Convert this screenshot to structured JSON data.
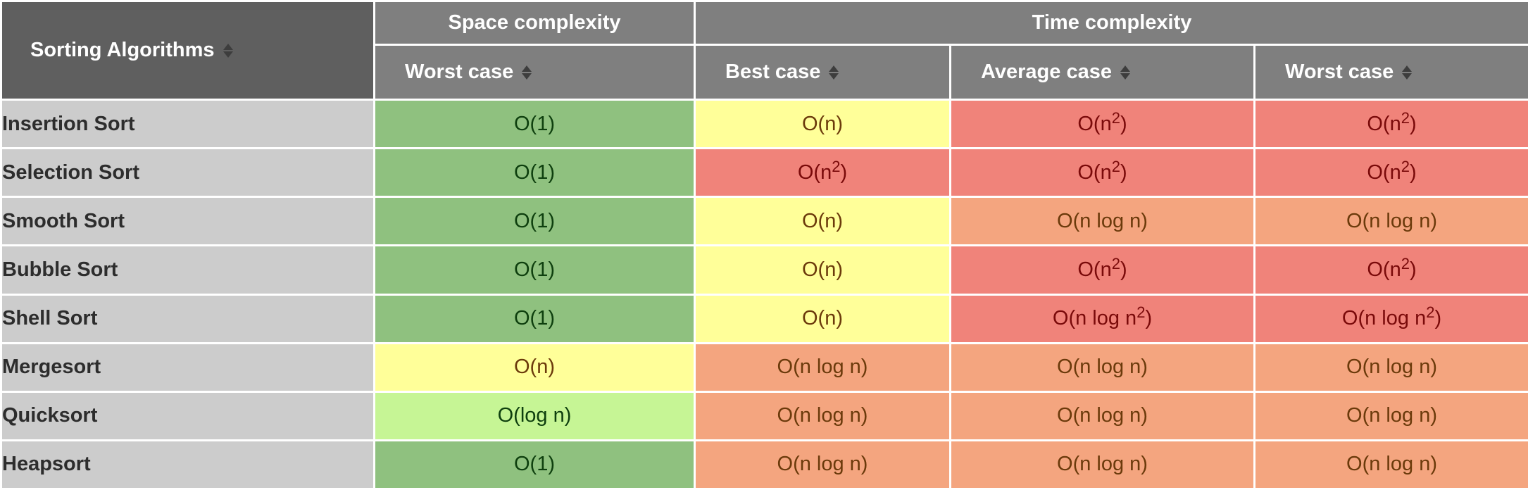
{
  "header": {
    "corner_label": "Sorting Algorithms",
    "groups": [
      "Space complexity",
      "Time complexity"
    ],
    "columns": [
      "Worst case",
      "Best case",
      "Average case",
      "Worst case"
    ]
  },
  "cell_colors": {
    "good": "#8fc17f",
    "great": "#c6f595",
    "fair": "#ffff99",
    "meh": "#f4a57f",
    "bad": "#f0837a"
  },
  "rows": [
    {
      "name": "Insertion Sort",
      "cells": [
        {
          "base": "O(1)",
          "sup": "",
          "tail": "",
          "rating": "good"
        },
        {
          "base": "O(n)",
          "sup": "",
          "tail": "",
          "rating": "fair"
        },
        {
          "base": "O(n",
          "sup": "2",
          "tail": ")",
          "rating": "bad"
        },
        {
          "base": "O(n",
          "sup": "2",
          "tail": ")",
          "rating": "bad"
        }
      ]
    },
    {
      "name": "Selection Sort",
      "cells": [
        {
          "base": "O(1)",
          "sup": "",
          "tail": "",
          "rating": "good"
        },
        {
          "base": "O(n",
          "sup": "2",
          "tail": ")",
          "rating": "bad"
        },
        {
          "base": "O(n",
          "sup": "2",
          "tail": ")",
          "rating": "bad"
        },
        {
          "base": "O(n",
          "sup": "2",
          "tail": ")",
          "rating": "bad"
        }
      ]
    },
    {
      "name": "Smooth Sort",
      "cells": [
        {
          "base": "O(1)",
          "sup": "",
          "tail": "",
          "rating": "good"
        },
        {
          "base": "O(n)",
          "sup": "",
          "tail": "",
          "rating": "fair"
        },
        {
          "base": "O(n log n)",
          "sup": "",
          "tail": "",
          "rating": "meh"
        },
        {
          "base": "O(n log n)",
          "sup": "",
          "tail": "",
          "rating": "meh"
        }
      ]
    },
    {
      "name": "Bubble Sort",
      "cells": [
        {
          "base": "O(1)",
          "sup": "",
          "tail": "",
          "rating": "good"
        },
        {
          "base": "O(n)",
          "sup": "",
          "tail": "",
          "rating": "fair"
        },
        {
          "base": "O(n",
          "sup": "2",
          "tail": ")",
          "rating": "bad"
        },
        {
          "base": "O(n",
          "sup": "2",
          "tail": ")",
          "rating": "bad"
        }
      ]
    },
    {
      "name": "Shell Sort",
      "cells": [
        {
          "base": "O(1)",
          "sup": "",
          "tail": "",
          "rating": "good"
        },
        {
          "base": "O(n)",
          "sup": "",
          "tail": "",
          "rating": "fair"
        },
        {
          "base": "O(n log n",
          "sup": "2",
          "tail": ")",
          "rating": "bad"
        },
        {
          "base": "O(n log n",
          "sup": "2",
          "tail": ")",
          "rating": "bad"
        }
      ]
    },
    {
      "name": "Mergesort",
      "cells": [
        {
          "base": "O(n)",
          "sup": "",
          "tail": "",
          "rating": "fair"
        },
        {
          "base": "O(n log n)",
          "sup": "",
          "tail": "",
          "rating": "meh"
        },
        {
          "base": "O(n log n)",
          "sup": "",
          "tail": "",
          "rating": "meh"
        },
        {
          "base": "O(n log n)",
          "sup": "",
          "tail": "",
          "rating": "meh"
        }
      ]
    },
    {
      "name": "Quicksort",
      "cells": [
        {
          "base": "O(log n)",
          "sup": "",
          "tail": "",
          "rating": "great"
        },
        {
          "base": "O(n log n)",
          "sup": "",
          "tail": "",
          "rating": "meh"
        },
        {
          "base": "O(n log n)",
          "sup": "",
          "tail": "",
          "rating": "meh"
        },
        {
          "base": "O(n log n)",
          "sup": "",
          "tail": "",
          "rating": "meh"
        }
      ]
    },
    {
      "name": "Heapsort",
      "cells": [
        {
          "base": "O(1)",
          "sup": "",
          "tail": "",
          "rating": "good"
        },
        {
          "base": "O(n log n)",
          "sup": "",
          "tail": "",
          "rating": "meh"
        },
        {
          "base": "O(n log n)",
          "sup": "",
          "tail": "",
          "rating": "meh"
        },
        {
          "base": "O(n log n)",
          "sup": "",
          "tail": "",
          "rating": "meh"
        }
      ]
    }
  ]
}
